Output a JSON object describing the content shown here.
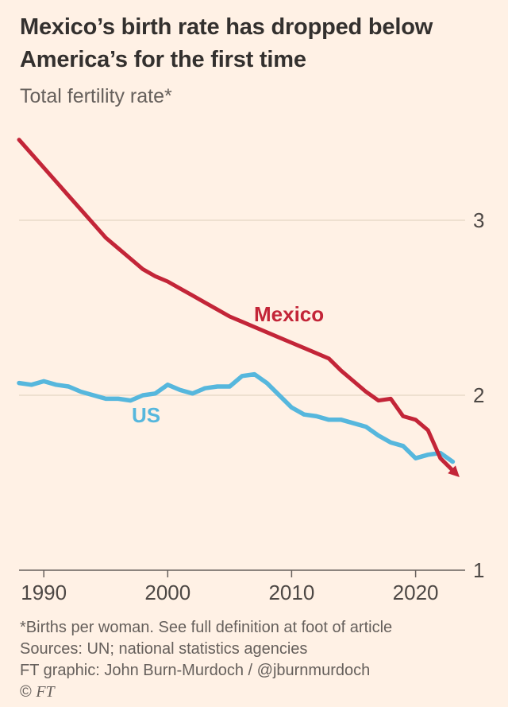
{
  "chart_data": {
    "type": "line",
    "title": "Mexico’s birth rate has dropped below America’s for the first time",
    "subtitle": "Total fertility rate*",
    "xlabel": "",
    "ylabel": "",
    "xlim": [
      1988,
      2024
    ],
    "ylim": [
      1,
      3.577
    ],
    "x_ticks": [
      1990,
      2000,
      2010,
      2020
    ],
    "y_ticks": [
      3,
      2,
      1
    ],
    "grid": "horizontal",
    "legend_position": "inline-labels",
    "x": [
      1988,
      1989,
      1990,
      1991,
      1992,
      1993,
      1994,
      1995,
      1996,
      1997,
      1998,
      1999,
      2000,
      2001,
      2002,
      2003,
      2004,
      2005,
      2006,
      2007,
      2008,
      2009,
      2010,
      2011,
      2012,
      2013,
      2014,
      2015,
      2016,
      2017,
      2018,
      2019,
      2020,
      2021,
      2022,
      2023
    ],
    "series": [
      {
        "name": "Mexico",
        "color": "#C32538",
        "width": 5,
        "arrow_end": true,
        "values": [
          3.46,
          3.38,
          3.3,
          3.22,
          3.14,
          3.06,
          2.98,
          2.9,
          2.84,
          2.78,
          2.72,
          2.68,
          2.65,
          2.61,
          2.57,
          2.53,
          2.49,
          2.45,
          2.42,
          2.39,
          2.36,
          2.33,
          2.3,
          2.27,
          2.24,
          2.21,
          2.14,
          2.08,
          2.02,
          1.97,
          1.98,
          1.88,
          1.86,
          1.8,
          1.64,
          1.57
        ]
      },
      {
        "name": "US",
        "color": "#56B7DD",
        "width": 5.5,
        "arrow_end": false,
        "values": [
          2.07,
          2.06,
          2.08,
          2.06,
          2.05,
          2.02,
          2.0,
          1.98,
          1.98,
          1.97,
          2.0,
          2.01,
          2.06,
          2.03,
          2.01,
          2.04,
          2.05,
          2.05,
          2.11,
          2.12,
          2.07,
          2.0,
          1.93,
          1.89,
          1.88,
          1.86,
          1.86,
          1.84,
          1.82,
          1.77,
          1.73,
          1.71,
          1.64,
          1.66,
          1.67,
          1.62
        ]
      }
    ]
  },
  "footer": {
    "footnote": "*Births per woman. See full definition at foot of article",
    "sources": "Sources: UN; national statistics agencies",
    "credit": "FT graphic: John Burn-Murdoch / @jburnmurdoch",
    "copyright_symbol": "©",
    "copyright_ft": "FT"
  },
  "colors": {
    "background": "#FFF1E5",
    "title_text": "#33302E",
    "muted_text": "#66605C",
    "gridline": "#E9DACA",
    "mexico_red": "#C32538",
    "us_blue": "#56B7DD"
  }
}
